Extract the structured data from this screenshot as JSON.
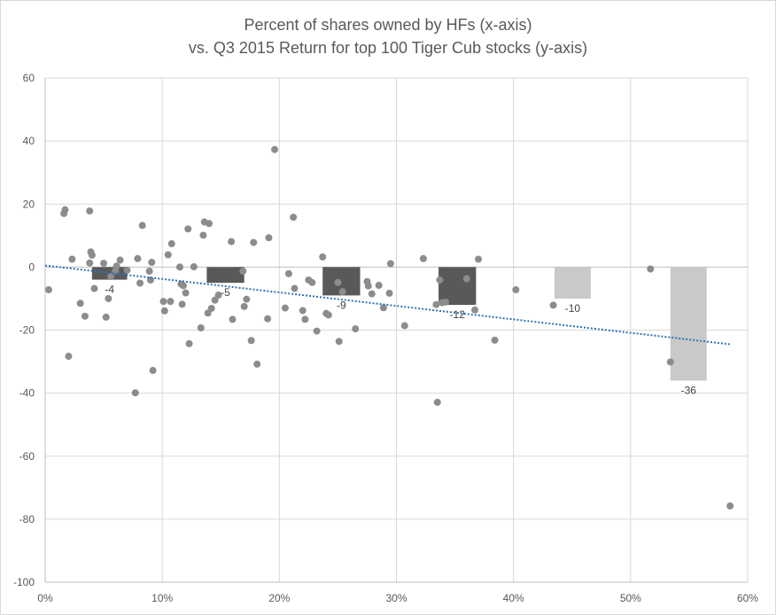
{
  "chart_data": {
    "type": "scatter",
    "title_line1": "Percent of shares owned by HFs (x-axis)",
    "title_line2": "vs. Q3 2015 Return for top 100 Tiger Cub stocks (y-axis)",
    "xlim": [
      0,
      0.6
    ],
    "ylim": [
      -100,
      60
    ],
    "x_ticks": [
      0,
      0.1,
      0.2,
      0.3,
      0.4,
      0.5,
      0.6
    ],
    "x_tick_labels": [
      "0%",
      "10%",
      "20%",
      "30%",
      "40%",
      "50%",
      "60%"
    ],
    "y_ticks": [
      60,
      40,
      20,
      0,
      -20,
      -40,
      -60,
      -80,
      -100
    ],
    "y_tick_labels": [
      "60",
      "40",
      "20",
      "0",
      "-20",
      "-40",
      "-60",
      "-80",
      "-100"
    ],
    "grid": true,
    "colors": {
      "points": "#8c8c8c",
      "bars_dark": "#595959",
      "bars_light": "#c9c9c9",
      "trendline": "#2e75b6",
      "grid": "#d9d9d9",
      "axis": "#bfbfbf"
    },
    "bars": [
      {
        "x_start": 0.04,
        "x_end": 0.07,
        "value": -4,
        "label": "-4",
        "shade": "dark"
      },
      {
        "x_start": 0.138,
        "x_end": 0.17,
        "value": -5,
        "label": "-5",
        "shade": "dark"
      },
      {
        "x_start": 0.237,
        "x_end": 0.269,
        "value": -9,
        "label": "-9",
        "shade": "dark"
      },
      {
        "x_start": 0.336,
        "x_end": 0.368,
        "value": -12,
        "label": "-12",
        "shade": "dark"
      },
      {
        "x_start": 0.435,
        "x_end": 0.466,
        "value": -10,
        "label": "-10",
        "shade": "light"
      },
      {
        "x_start": 0.534,
        "x_end": 0.565,
        "value": -36,
        "label": "-36",
        "shade": "light"
      }
    ],
    "trendline": {
      "x": [
        0,
        0.585
      ],
      "y": [
        0.5,
        -24.5
      ]
    },
    "points": [
      [
        0.003,
        -7.2
      ],
      [
        0.016,
        17
      ],
      [
        0.017,
        18.2
      ],
      [
        0.02,
        -28.3
      ],
      [
        0.023,
        2.5
      ],
      [
        0.03,
        -11.5
      ],
      [
        0.034,
        -15.6
      ],
      [
        0.038,
        17.8
      ],
      [
        0.038,
        1.3
      ],
      [
        0.039,
        4.8
      ],
      [
        0.04,
        3.8
      ],
      [
        0.042,
        -6.8
      ],
      [
        0.05,
        1.2
      ],
      [
        0.052,
        -15.9
      ],
      [
        0.054,
        -10
      ],
      [
        0.056,
        -3
      ],
      [
        0.06,
        -1.2
      ],
      [
        0.061,
        0.3
      ],
      [
        0.064,
        2.2
      ],
      [
        0.07,
        -1
      ],
      [
        0.077,
        -39.9
      ],
      [
        0.079,
        2.7
      ],
      [
        0.081,
        -5.1
      ],
      [
        0.083,
        13.2
      ],
      [
        0.089,
        -1.3
      ],
      [
        0.09,
        -4.1
      ],
      [
        0.091,
        1.5
      ],
      [
        0.092,
        -32.8
      ],
      [
        0.101,
        -10.9
      ],
      [
        0.102,
        -13.9
      ],
      [
        0.105,
        3.9
      ],
      [
        0.107,
        -10.9
      ],
      [
        0.108,
        7.4
      ],
      [
        0.115,
        0
      ],
      [
        0.116,
        -5.4
      ],
      [
        0.117,
        -11.8
      ],
      [
        0.118,
        -5.9
      ],
      [
        0.12,
        -8.2
      ],
      [
        0.122,
        12.1
      ],
      [
        0.123,
        -24.3
      ],
      [
        0.127,
        0.1
      ],
      [
        0.133,
        -19.3
      ],
      [
        0.135,
        10.1
      ],
      [
        0.136,
        14.3
      ],
      [
        0.139,
        -14.6
      ],
      [
        0.14,
        13.8
      ],
      [
        0.142,
        -13.1
      ],
      [
        0.145,
        -10.5
      ],
      [
        0.148,
        -8.9
      ],
      [
        0.159,
        8.1
      ],
      [
        0.16,
        -16.6
      ],
      [
        0.169,
        -1.3
      ],
      [
        0.17,
        -12.5
      ],
      [
        0.172,
        -10.2
      ],
      [
        0.176,
        -23.3
      ],
      [
        0.178,
        7.8
      ],
      [
        0.181,
        -30.8
      ],
      [
        0.19,
        -16.4
      ],
      [
        0.191,
        9.3
      ],
      [
        0.196,
        37.3
      ],
      [
        0.205,
        -13
      ],
      [
        0.208,
        -2.1
      ],
      [
        0.212,
        15.8
      ],
      [
        0.213,
        -6.8
      ],
      [
        0.22,
        -13.8
      ],
      [
        0.222,
        -16.6
      ],
      [
        0.225,
        -4.1
      ],
      [
        0.228,
        -4.9
      ],
      [
        0.232,
        -20.3
      ],
      [
        0.237,
        3.2
      ],
      [
        0.24,
        -14.7
      ],
      [
        0.242,
        -15.2
      ],
      [
        0.25,
        -4.9
      ],
      [
        0.251,
        -23.6
      ],
      [
        0.254,
        -7.8
      ],
      [
        0.265,
        -19.6
      ],
      [
        0.275,
        -4.6
      ],
      [
        0.276,
        -6
      ],
      [
        0.279,
        -8.5
      ],
      [
        0.285,
        -5.8
      ],
      [
        0.289,
        -12.9
      ],
      [
        0.294,
        -8.3
      ],
      [
        0.295,
        1.1
      ],
      [
        0.307,
        -18.6
      ],
      [
        0.323,
        2.7
      ],
      [
        0.334,
        -11.9
      ],
      [
        0.335,
        -42.9
      ],
      [
        0.337,
        -4.1
      ],
      [
        0.339,
        -11.3
      ],
      [
        0.342,
        -11.1
      ],
      [
        0.36,
        -3.7
      ],
      [
        0.367,
        -13.6
      ],
      [
        0.37,
        2.5
      ],
      [
        0.384,
        -23.2
      ],
      [
        0.402,
        -7.2
      ],
      [
        0.434,
        -12.1
      ],
      [
        0.517,
        -0.6
      ],
      [
        0.534,
        -30.1
      ],
      [
        0.585,
        -75.8
      ]
    ]
  }
}
